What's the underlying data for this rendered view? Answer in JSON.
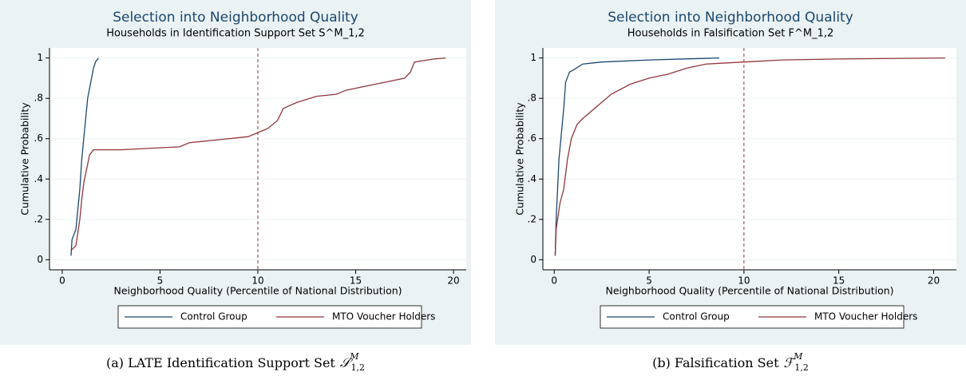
{
  "chart_data": [
    {
      "type": "line",
      "title": "Selection into Neighborhood Quality",
      "subtitle": "Households in Identification Support Set S^M_1,2",
      "x_label": "Neighborhood Quality (Percentile of National Distribution)",
      "y_label": "Cumulative Probability",
      "xlim": [
        -0.65,
        20.65
      ],
      "ylim": [
        -0.05,
        1.05
      ],
      "xticks": [
        0,
        5,
        10,
        15,
        20
      ],
      "yticks": [
        0,
        {
          "value": 0.2,
          "label": ".2"
        },
        {
          "value": 0.4,
          "label": ".4"
        },
        {
          "value": 0.6,
          "label": ".6"
        },
        {
          "value": 0.8,
          "label": ".8"
        },
        1
      ],
      "grid": true,
      "legend": "bottom",
      "xline": 10,
      "xline_color": "#90353b",
      "series": [
        {
          "name": "Control Group",
          "color": "#1a476f",
          "x": [
            0.45,
            0.5,
            0.7,
            0.8,
            0.9,
            1.0,
            1.1,
            1.2,
            1.3,
            1.4,
            1.5,
            1.6,
            1.7,
            1.85
          ],
          "values": [
            0.02,
            0.1,
            0.15,
            0.25,
            0.35,
            0.5,
            0.6,
            0.7,
            0.8,
            0.85,
            0.9,
            0.95,
            0.98,
            1.0
          ]
        },
        {
          "name": "MTO Voucher Holders",
          "color": "#90353b",
          "x": [
            0.5,
            0.7,
            0.9,
            1.0,
            1.1,
            1.25,
            1.4,
            1.6,
            3,
            4,
            5,
            6,
            6.5,
            7.5,
            8.5,
            9.5,
            10,
            10.5,
            11,
            11.3,
            12,
            13,
            14,
            14.5,
            15.5,
            16.5,
            17.5,
            17.8,
            18,
            19,
            19.6
          ],
          "values": [
            0.05,
            0.07,
            0.2,
            0.3,
            0.38,
            0.45,
            0.52,
            0.545,
            0.545,
            0.55,
            0.555,
            0.56,
            0.58,
            0.59,
            0.6,
            0.61,
            0.63,
            0.65,
            0.69,
            0.75,
            0.78,
            0.81,
            0.82,
            0.84,
            0.86,
            0.88,
            0.9,
            0.93,
            0.98,
            0.995,
            1.0
          ]
        }
      ],
      "caption": "(a) LATE Identification Support Set",
      "caption_math": {
        "symbol": "𝒮",
        "sup": "M",
        "sub": "1,2"
      }
    },
    {
      "type": "line",
      "title": "Selection into Neighborhood Quality",
      "subtitle": "Households in Falsification Set F^M_1,2",
      "x_label": "Neighborhood Quality (Percentile of National Distribution)",
      "y_label": "Cumulative Probability",
      "xlim": [
        -0.6,
        21.2
      ],
      "ylim": [
        -0.05,
        1.05
      ],
      "xticks": [
        0,
        5,
        10,
        15,
        20
      ],
      "yticks": [
        0,
        {
          "value": 0.2,
          "label": ".2"
        },
        {
          "value": 0.4,
          "label": ".4"
        },
        {
          "value": 0.6,
          "label": ".6"
        },
        {
          "value": 0.8,
          "label": ".8"
        },
        1
      ],
      "grid": true,
      "legend": "bottom",
      "xline": 10,
      "xline_color": "#90353b",
      "series": [
        {
          "name": "Control Group",
          "color": "#1a476f",
          "x": [
            0.05,
            0.1,
            0.15,
            0.25,
            0.35,
            0.5,
            0.6,
            0.8,
            1,
            1.5,
            2.5,
            5,
            8.7
          ],
          "values": [
            0.02,
            0.2,
            0.3,
            0.5,
            0.6,
            0.75,
            0.88,
            0.93,
            0.94,
            0.97,
            0.98,
            0.99,
            1.0
          ]
        },
        {
          "name": "MTO Voucher Holders",
          "color": "#90353b",
          "x": [
            0.05,
            0.1,
            0.3,
            0.5,
            0.7,
            0.9,
            1.2,
            1.5,
            2,
            2.5,
            3,
            4,
            5,
            6,
            7,
            8,
            9,
            10,
            12,
            15,
            20.6
          ],
          "values": [
            0.02,
            0.15,
            0.28,
            0.35,
            0.5,
            0.6,
            0.67,
            0.7,
            0.74,
            0.78,
            0.82,
            0.87,
            0.9,
            0.92,
            0.95,
            0.97,
            0.975,
            0.98,
            0.99,
            0.995,
            1.0
          ]
        }
      ],
      "caption": "(b) Falsification Set",
      "caption_math": {
        "symbol": "ℱ",
        "sup": "M",
        "sub": "1,2"
      }
    }
  ]
}
